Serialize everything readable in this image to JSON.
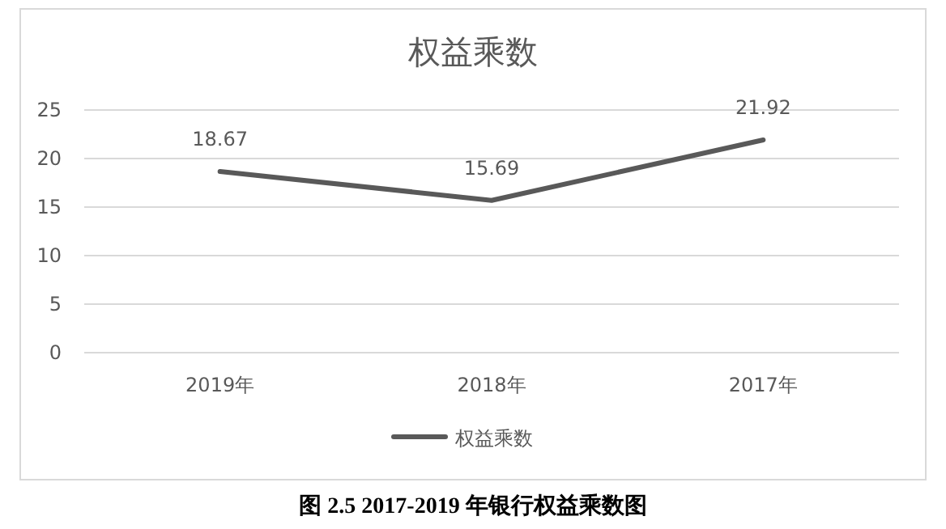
{
  "chart_data": {
    "type": "line",
    "title": "权益乘数",
    "categories": [
      "2019年",
      "2018年",
      "2017年"
    ],
    "series": [
      {
        "name": "权益乘数",
        "color": "#595959",
        "values": [
          18.67,
          15.69,
          21.92
        ]
      }
    ],
    "ylim": [
      0,
      25
    ],
    "yticks": [
      0,
      5,
      10,
      15,
      20,
      25
    ],
    "grid": "y",
    "legend": "bottom",
    "data_labels": true,
    "annotations": [
      "图 2.5 2017-2019 年银行权益乘数图"
    ]
  }
}
